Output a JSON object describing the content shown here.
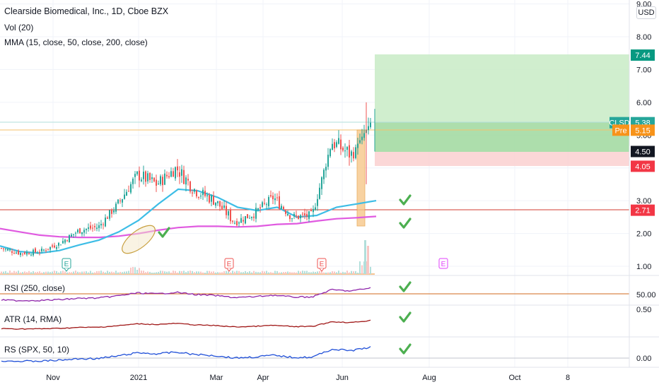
{
  "header": {
    "title": "Clearside Biomedical, Inc., 1D, Cboe BZX",
    "vol": "Vol (20)",
    "mma": "MMA (15, close, 50, close, 200, close)",
    "currency": "USD"
  },
  "panes": {
    "rsi_title": "RSI (250, close)",
    "atr_title": "ATR (14, RMA)",
    "rs_title": "RS (SPX, 50, 10)",
    "rsi_tick": "50.00",
    "atr_tick": "0.50",
    "rs_tick": "0.00"
  },
  "colors": {
    "up": "#26a69a",
    "down": "#ef5350",
    "sma50": "#3dbde6",
    "sma200": "#e05ae0",
    "rsi": "#8e24aa",
    "atr": "#a01818",
    "rs": "#1e4ed8",
    "check": "#4caf50",
    "target_zone": "#c8ebc6",
    "stop_zone": "#fbd3d3",
    "earnings_teal": "#26a69a",
    "earnings_red": "#ef5350",
    "earnings_magenta": "#e040fb"
  },
  "chart_data": {
    "type": "candlestick",
    "title": "Clearside Biomedical, Inc., 1D, Cboe BZX",
    "x_ticks": [
      "Nov",
      "2021",
      "Mar",
      "Apr",
      "Jun",
      "Aug",
      "Oct",
      "8"
    ],
    "y_ticks": [
      "1.00",
      "2.00",
      "3.00",
      "4.00",
      "5.00",
      "6.00",
      "7.00",
      "8.00",
      "9.00"
    ],
    "price_labels": [
      {
        "text": "7.44",
        "value": 7.44,
        "color": "#089981"
      },
      {
        "text": "CLSD",
        "value": 5.38,
        "color": "#26a69a"
      },
      {
        "text": "5.38",
        "value": 5.38,
        "color": "#26a69a"
      },
      {
        "text": "Pre",
        "value": 5.15,
        "color": "#f7931a"
      },
      {
        "text": "5.15",
        "value": 5.15,
        "color": "#f7931a"
      },
      {
        "text": "4.50",
        "value": 4.5,
        "color": "#131722"
      },
      {
        "text": "4.05",
        "value": 4.05,
        "color": "#f23645"
      },
      {
        "text": "2.71",
        "value": 2.71,
        "color": "#f23645"
      }
    ],
    "levels": {
      "resistance": 5.0,
      "support": 2.71,
      "entry": 4.5,
      "target": 7.44,
      "stop": 4.05
    },
    "earnings_markers": [
      "E",
      "E",
      "E",
      "E"
    ],
    "price_series": {
      "dates": [
        "Oct 15",
        "Nov 1",
        "Nov 15",
        "Dec 1",
        "Dec 15",
        "Jan 1",
        "Jan 4",
        "Jan 15",
        "Feb 1",
        "Feb 15",
        "Mar 1",
        "Mar 15",
        "Apr 1",
        "Apr 15",
        "May 1",
        "May 15",
        "Jun 1",
        "Jun 7",
        "Jun 10",
        "Jun 14"
      ],
      "close": [
        1.55,
        1.4,
        1.45,
        1.7,
        2.1,
        2.2,
        2.9,
        3.8,
        3.5,
        4.0,
        3.3,
        3.0,
        2.35,
        2.6,
        3.1,
        2.5,
        2.55,
        4.8,
        4.4,
        5.38
      ]
    },
    "sma50": [
      1.62,
      1.45,
      1.4,
      1.48,
      1.65,
      1.8,
      2.05,
      2.4,
      2.9,
      3.35,
      3.3,
      3.1,
      2.8,
      2.7,
      2.8,
      2.5,
      2.55,
      2.8,
      2.9,
      3.0
    ],
    "sma200": [
      2.15,
      2.05,
      1.95,
      1.9,
      1.88,
      1.88,
      1.92,
      2.0,
      2.1,
      2.18,
      2.22,
      2.22,
      2.2,
      2.22,
      2.28,
      2.3,
      2.38,
      2.45,
      2.48,
      2.52
    ],
    "series": [
      {
        "name": "Vol (20)"
      },
      {
        "name": "RSI (250, close)"
      },
      {
        "name": "ATR (14, RMA)"
      },
      {
        "name": "RS (SPX, 50, 10)"
      }
    ]
  }
}
